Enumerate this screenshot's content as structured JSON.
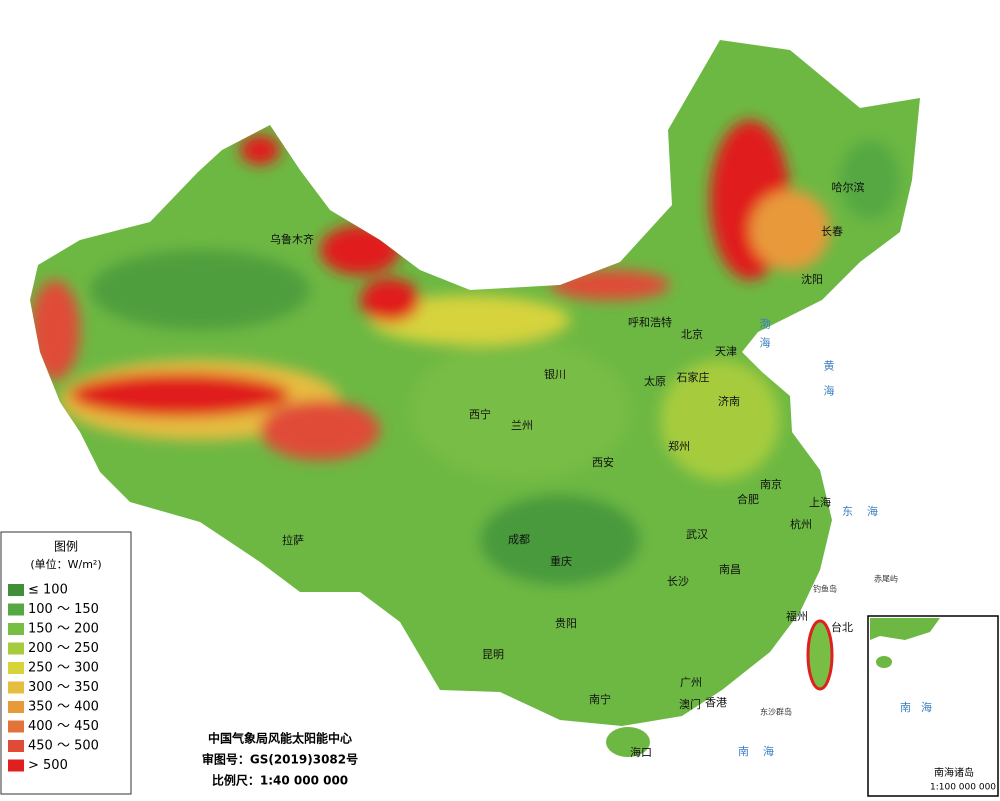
{
  "legend": {
    "title": "图例",
    "unit": "(单位：W/m²)",
    "items": [
      {
        "label": "≤ 100",
        "color": "#3f8f3a"
      },
      {
        "label": "100 ～ 150",
        "color": "#55a842"
      },
      {
        "label": "150 ～ 200",
        "color": "#78bd44"
      },
      {
        "label": "200 ～ 250",
        "color": "#a6cc3e"
      },
      {
        "label": "250 ～ 300",
        "color": "#d6d33c"
      },
      {
        "label": "300 ～ 350",
        "color": "#e6bd3f"
      },
      {
        "label": "350 ～ 400",
        "color": "#e89a3a"
      },
      {
        "label": "400 ～ 450",
        "color": "#e2733a"
      },
      {
        "label": "450 ～ 500",
        "color": "#e04b38"
      },
      {
        "label": "> 500",
        "color": "#e01f1f"
      }
    ]
  },
  "credits": {
    "organization": "中国气象局风能太阳能中心",
    "approval": "审图号：GS(2019)3082号",
    "scale": "比例尺：1:40 000 000"
  },
  "cities": [
    "乌鲁木齐",
    "哈尔滨",
    "长春",
    "沈阳",
    "呼和浩特",
    "北京",
    "天津",
    "银川",
    "太原",
    "石家庄",
    "济南",
    "西宁",
    "兰州",
    "郑州",
    "西安",
    "南京",
    "合肥",
    "上海",
    "杭州",
    "拉萨",
    "成都",
    "武汉",
    "重庆",
    "南昌",
    "长沙",
    "福州",
    "台北",
    "贵阳",
    "昆明",
    "南宁",
    "广州",
    "香港",
    "澳门",
    "海口"
  ],
  "seas": {
    "bohai": "渤海",
    "huanghai": "黄海",
    "donghai": "东海",
    "nanhai": "南海"
  },
  "islands": [
    "钓鱼岛",
    "赤尾屿",
    "东沙群岛"
  ],
  "inset": {
    "sea": "南海",
    "title": "南海诸岛",
    "scale": "1:100 000 000"
  }
}
